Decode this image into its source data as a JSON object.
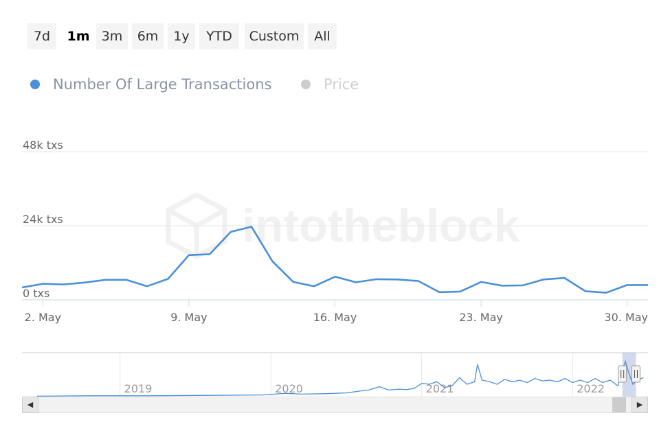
{
  "range_selector": {
    "buttons": [
      {
        "label": "7d",
        "active": false
      },
      {
        "label": "1m",
        "active": true
      },
      {
        "label": "3m",
        "active": false
      },
      {
        "label": "6m",
        "active": false
      },
      {
        "label": "1y",
        "active": false
      },
      {
        "label": "YTD",
        "active": false
      },
      {
        "label": "Custom",
        "active": false
      },
      {
        "label": "All",
        "active": false
      }
    ]
  },
  "legend": {
    "items": [
      {
        "label": "Number Of Large Transactions",
        "color": "#4a90d9",
        "text_color": "#8794a3",
        "enabled": true
      },
      {
        "label": "Price",
        "color": "#cccccc",
        "text_color": "#cfcfcf",
        "enabled": false
      }
    ]
  },
  "watermark": {
    "text": "intotheblock"
  },
  "chart_data": {
    "type": "line",
    "series": [
      {
        "name": "Number Of Large Transactions",
        "color": "#4a90d9",
        "x": [
          "2022-05-01",
          "2022-05-02",
          "2022-05-03",
          "2022-05-04",
          "2022-05-05",
          "2022-05-06",
          "2022-05-07",
          "2022-05-08",
          "2022-05-09",
          "2022-05-10",
          "2022-05-11",
          "2022-05-12",
          "2022-05-13",
          "2022-05-14",
          "2022-05-15",
          "2022-05-16",
          "2022-05-17",
          "2022-05-18",
          "2022-05-19",
          "2022-05-20",
          "2022-05-21",
          "2022-05-22",
          "2022-05-23",
          "2022-05-24",
          "2022-05-25",
          "2022-05-26",
          "2022-05-27",
          "2022-05-28",
          "2022-05-29",
          "2022-05-30",
          "2022-05-31"
        ],
        "values": [
          4000,
          5200,
          5000,
          5600,
          6500,
          6500,
          4400,
          6800,
          14500,
          14800,
          22000,
          23700,
          12500,
          5800,
          4400,
          7500,
          5700,
          6700,
          6600,
          6100,
          2500,
          2700,
          5800,
          4600,
          4700,
          6600,
          7100,
          2800,
          2300,
          4800,
          4800
        ]
      }
    ],
    "yaxis": {
      "ticks": [
        0,
        24000,
        48000
      ],
      "tick_labels": [
        "0 txs",
        "24k txs",
        "48k txs"
      ],
      "range": [
        0,
        48000
      ]
    },
    "xaxis": {
      "ticks": [
        "2022-05-02",
        "2022-05-09",
        "2022-05-16",
        "2022-05-23",
        "2022-05-30"
      ],
      "tick_labels": [
        "2. May",
        "9. May",
        "16. May",
        "23. May",
        "30. May"
      ],
      "range": [
        "2022-05-01",
        "2022-05-31"
      ]
    },
    "grid": true,
    "legend_position": "top-left",
    "navigator": {
      "year_labels": [
        "2019",
        "2020",
        "2021",
        "2022"
      ],
      "x_range": [
        2018.35,
        2022.5
      ],
      "year_ticks": [
        2019,
        2020,
        2021,
        2022
      ],
      "y_range": [
        0,
        100
      ],
      "selected_range": [
        2022.33,
        2022.42
      ],
      "x": [
        2018.45,
        2018.8,
        2019.2,
        2019.6,
        2019.95,
        2020.1,
        2020.2,
        2020.35,
        2020.5,
        2020.6,
        2020.65,
        2020.72,
        2020.78,
        2020.85,
        2020.9,
        2020.95,
        2021.0,
        2021.05,
        2021.1,
        2021.15,
        2021.2,
        2021.25,
        2021.3,
        2021.35,
        2021.37,
        2021.4,
        2021.45,
        2021.5,
        2021.55,
        2021.6,
        2021.65,
        2021.7,
        2021.75,
        2021.8,
        2021.85,
        2021.9,
        2021.95,
        2022.0,
        2022.05,
        2022.1,
        2022.15,
        2022.2,
        2022.25,
        2022.3,
        2022.35,
        2022.37,
        2022.4,
        2022.43,
        2022.47
      ],
      "values": [
        1,
        2,
        2,
        3,
        4,
        8,
        6,
        7,
        9,
        14,
        16,
        24,
        16,
        18,
        17,
        20,
        32,
        30,
        36,
        22,
        26,
        46,
        30,
        36,
        78,
        40,
        36,
        30,
        42,
        36,
        40,
        34,
        44,
        38,
        40,
        36,
        44,
        34,
        40,
        34,
        44,
        34,
        40,
        26,
        86,
        60,
        30,
        40,
        46
      ]
    }
  }
}
